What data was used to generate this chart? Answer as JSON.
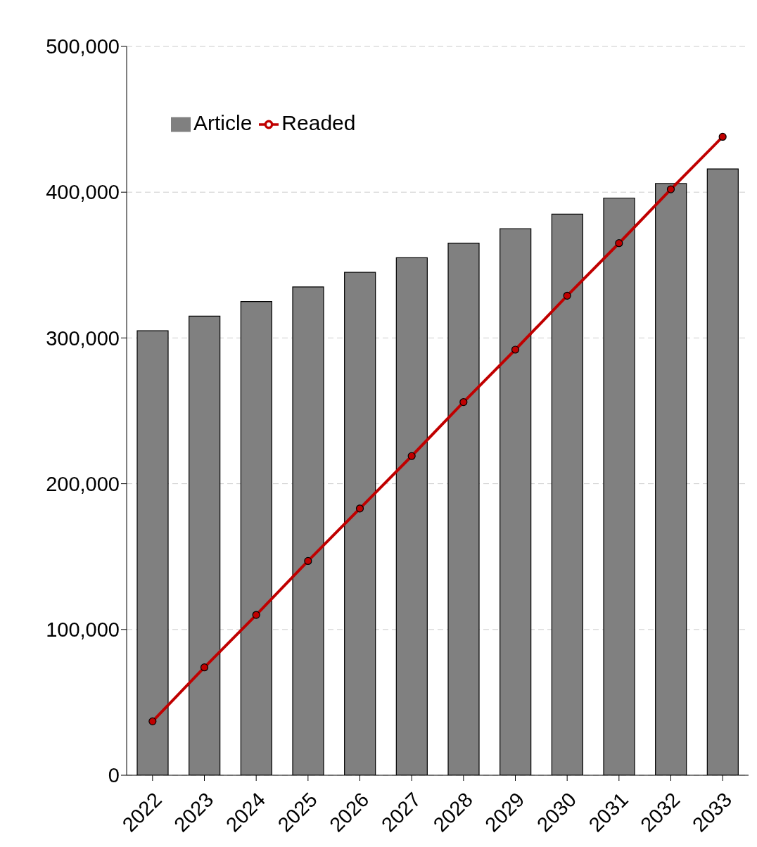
{
  "chart_data": {
    "type": "bar",
    "categories": [
      "2022",
      "2023",
      "2024",
      "2025",
      "2026",
      "2027",
      "2028",
      "2029",
      "2030",
      "2031",
      "2032",
      "2033"
    ],
    "series": [
      {
        "name": "Article",
        "color": "#808080",
        "values": [
          305000,
          315000,
          325000,
          335000,
          345000,
          355000,
          365000,
          375000,
          385000,
          396000,
          406000,
          416000
        ]
      },
      {
        "name": "Readed",
        "type": "line",
        "color": "#c00000",
        "marker": "circle",
        "line_style": "solid",
        "values": [
          37000,
          74000,
          110000,
          147000,
          183000,
          219000,
          256000,
          292000,
          329000,
          365000,
          402000,
          438000
        ]
      }
    ],
    "ylim": [
      0,
      500000
    ],
    "yticks": [
      {
        "value": 0,
        "label": "0"
      },
      {
        "value": 100000,
        "label": "100,000"
      },
      {
        "value": 200000,
        "label": "200,000"
      },
      {
        "value": 300000,
        "label": "300,000"
      },
      {
        "value": 400000,
        "label": "400,000"
      },
      {
        "value": 500000,
        "label": "500,000"
      }
    ],
    "grid": "y",
    "legend": "top left"
  }
}
